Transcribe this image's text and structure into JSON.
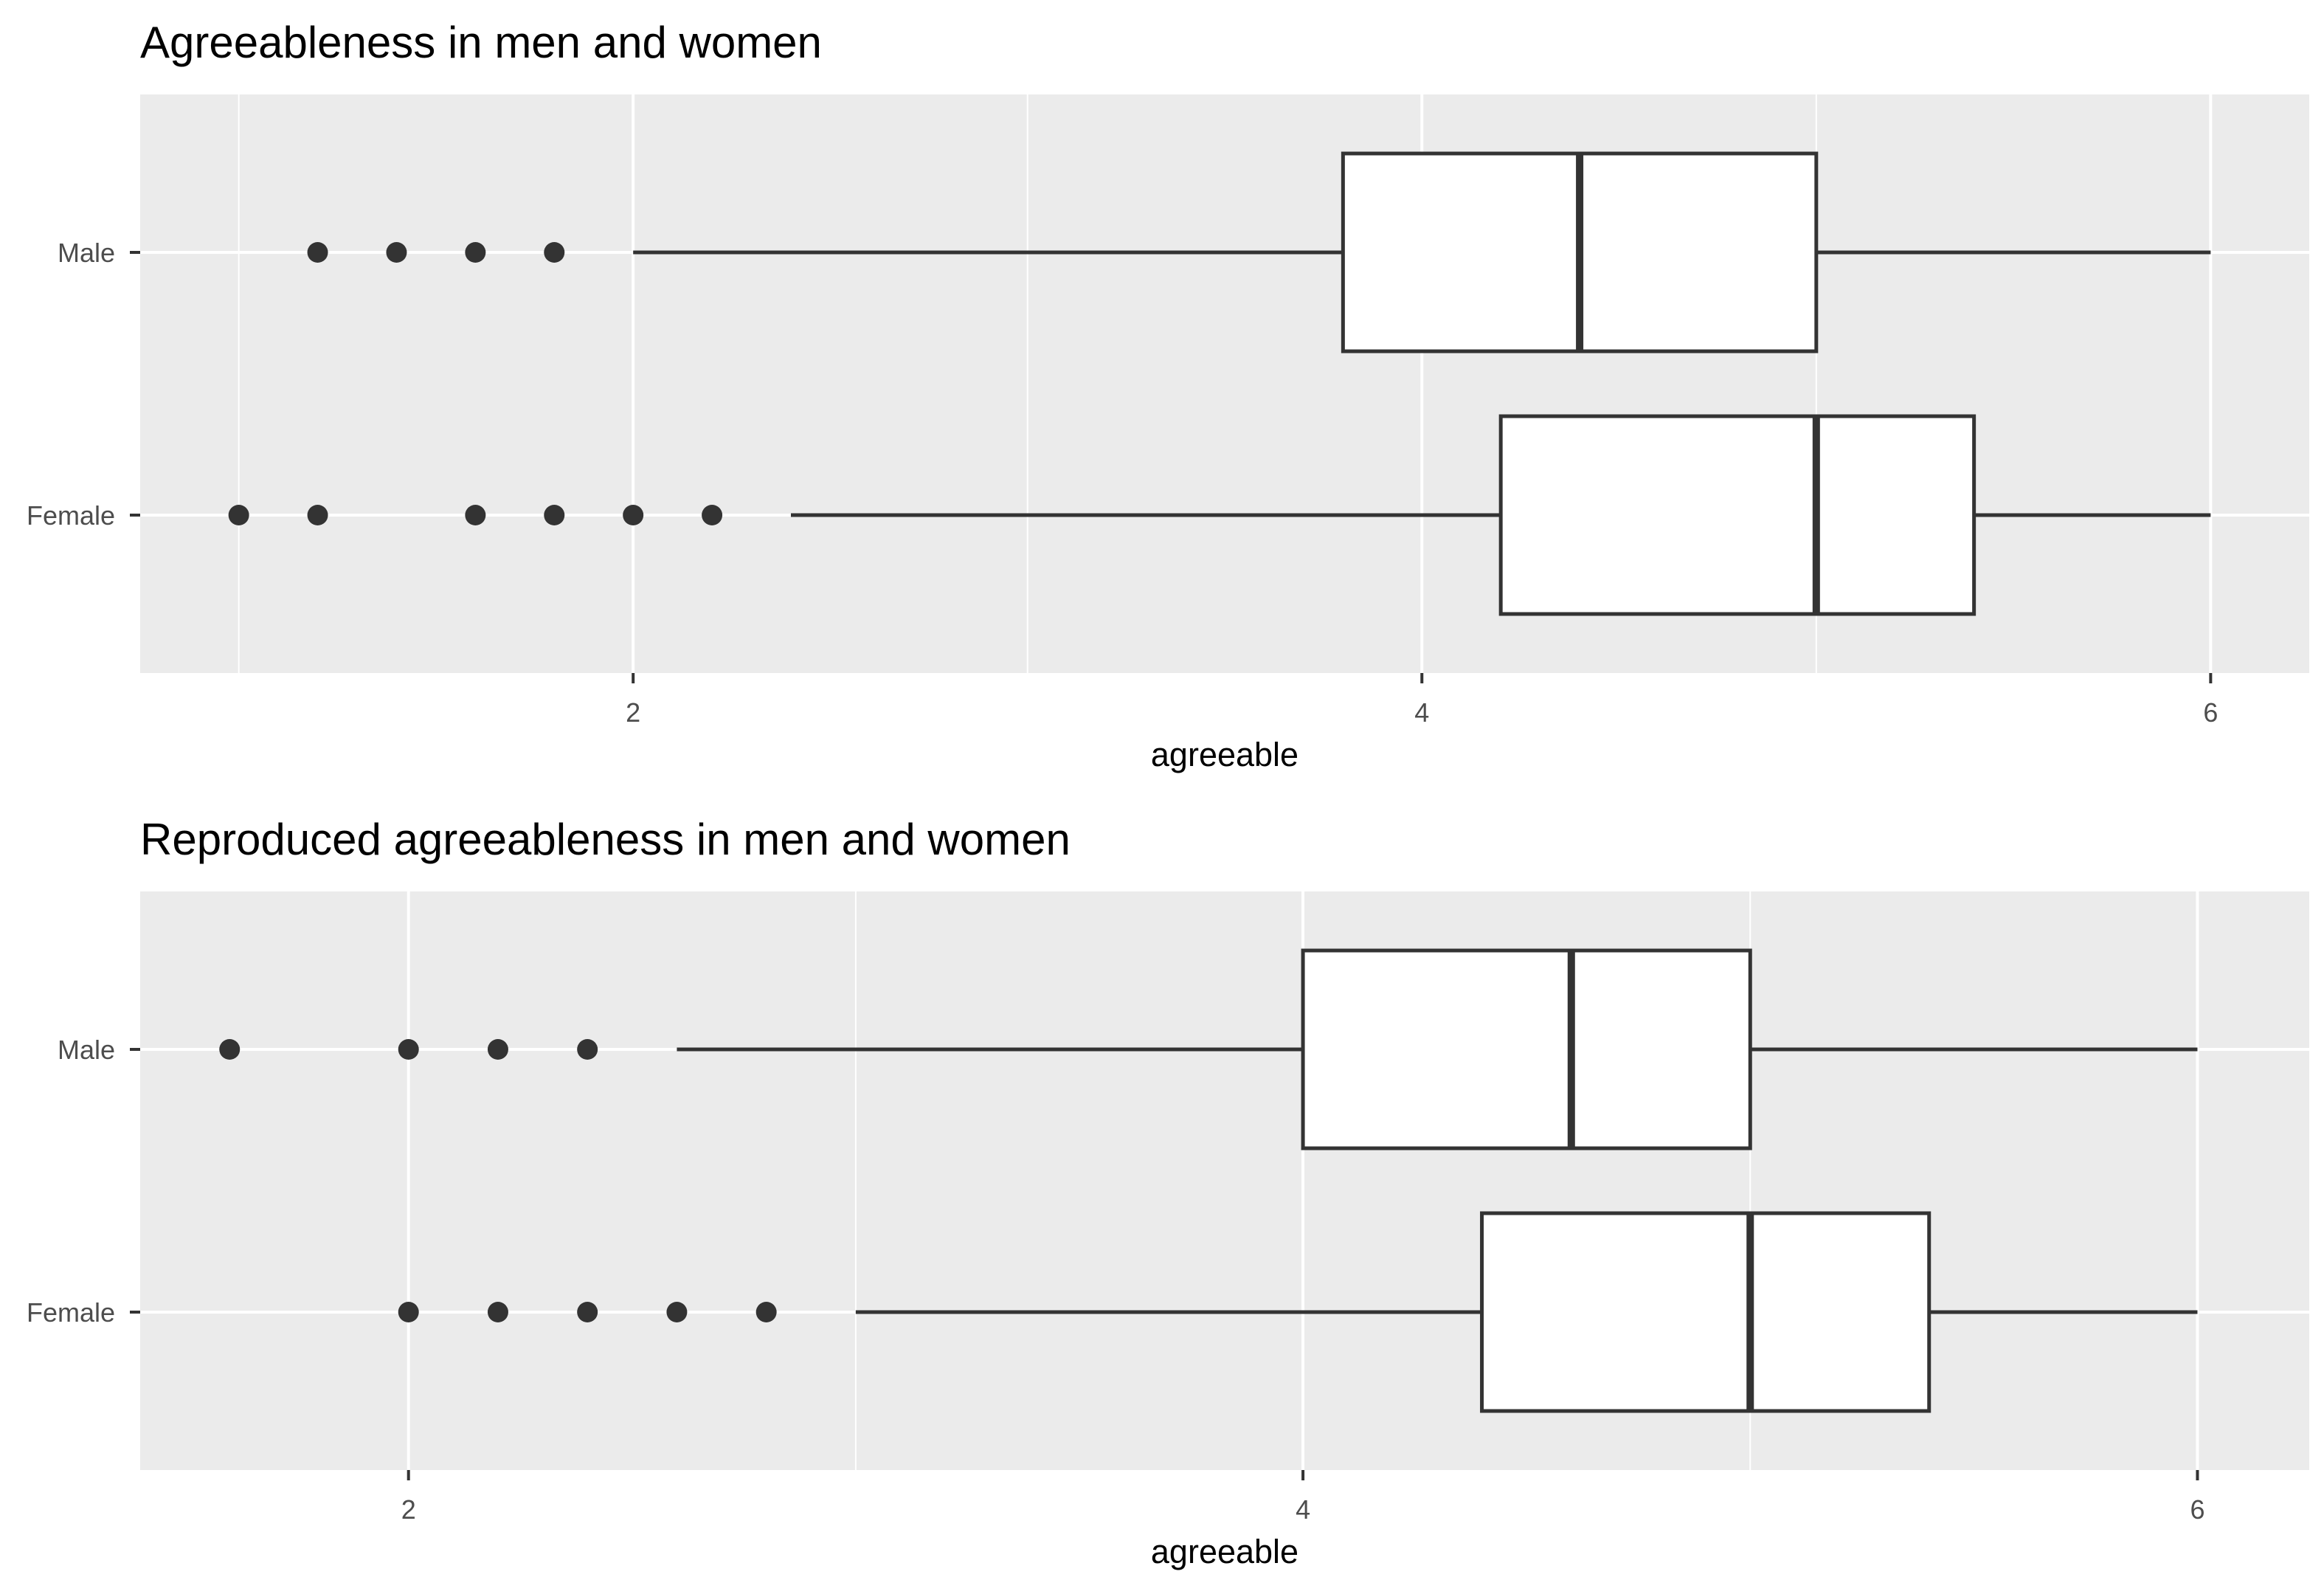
{
  "chart_data": [
    {
      "type": "boxplot",
      "orientation": "horizontal",
      "title": "Agreeableness in men and women",
      "xlabel": "agreeable",
      "ylabel": "",
      "xlim": [
        0.75,
        6.25
      ],
      "x_ticks": [
        2,
        4,
        6
      ],
      "x_minor_gridlines": [
        1,
        3,
        5
      ],
      "grid": true,
      "legend": "none",
      "colors": {
        "panel": "#ebebeb",
        "grid": "#ffffff",
        "box_fill": "#ffffff",
        "line": "#333333",
        "title": "#000000",
        "tick_label": "#4d4d4d"
      },
      "categories": [
        "Male",
        "Female"
      ],
      "boxes": [
        {
          "category": "Male",
          "whisker_low": 2.0,
          "q1": 3.8,
          "median": 4.4,
          "q3": 5.0,
          "whisker_high": 6.0,
          "outliers": [
            1.2,
            1.4,
            1.6,
            1.8
          ]
        },
        {
          "category": "Female",
          "whisker_low": 2.4,
          "q1": 4.2,
          "median": 5.0,
          "q3": 5.4,
          "whisker_high": 6.0,
          "outliers": [
            1.0,
            1.2,
            1.6,
            1.8,
            2.0,
            2.2
          ]
        }
      ]
    },
    {
      "type": "boxplot",
      "orientation": "horizontal",
      "title": "Reproduced agreeableness in men and women",
      "xlabel": "agreeable",
      "ylabel": "",
      "xlim": [
        1.4,
        6.25
      ],
      "x_ticks": [
        2,
        4,
        6
      ],
      "x_minor_gridlines": [
        3,
        5
      ],
      "grid": true,
      "legend": "none",
      "colors": {
        "panel": "#ebebeb",
        "grid": "#ffffff",
        "box_fill": "#ffffff",
        "line": "#333333",
        "title": "#000000",
        "tick_label": "#4d4d4d"
      },
      "categories": [
        "Male",
        "Female"
      ],
      "boxes": [
        {
          "category": "Male",
          "whisker_low": 2.6,
          "q1": 4.0,
          "median": 4.6,
          "q3": 5.0,
          "whisker_high": 6.0,
          "outliers": [
            1.6,
            2.0,
            2.2,
            2.4
          ]
        },
        {
          "category": "Female",
          "whisker_low": 3.0,
          "q1": 4.4,
          "median": 5.0,
          "q3": 5.4,
          "whisker_high": 6.0,
          "outliers": [
            2.0,
            2.2,
            2.4,
            2.6,
            2.8
          ]
        }
      ]
    }
  ]
}
